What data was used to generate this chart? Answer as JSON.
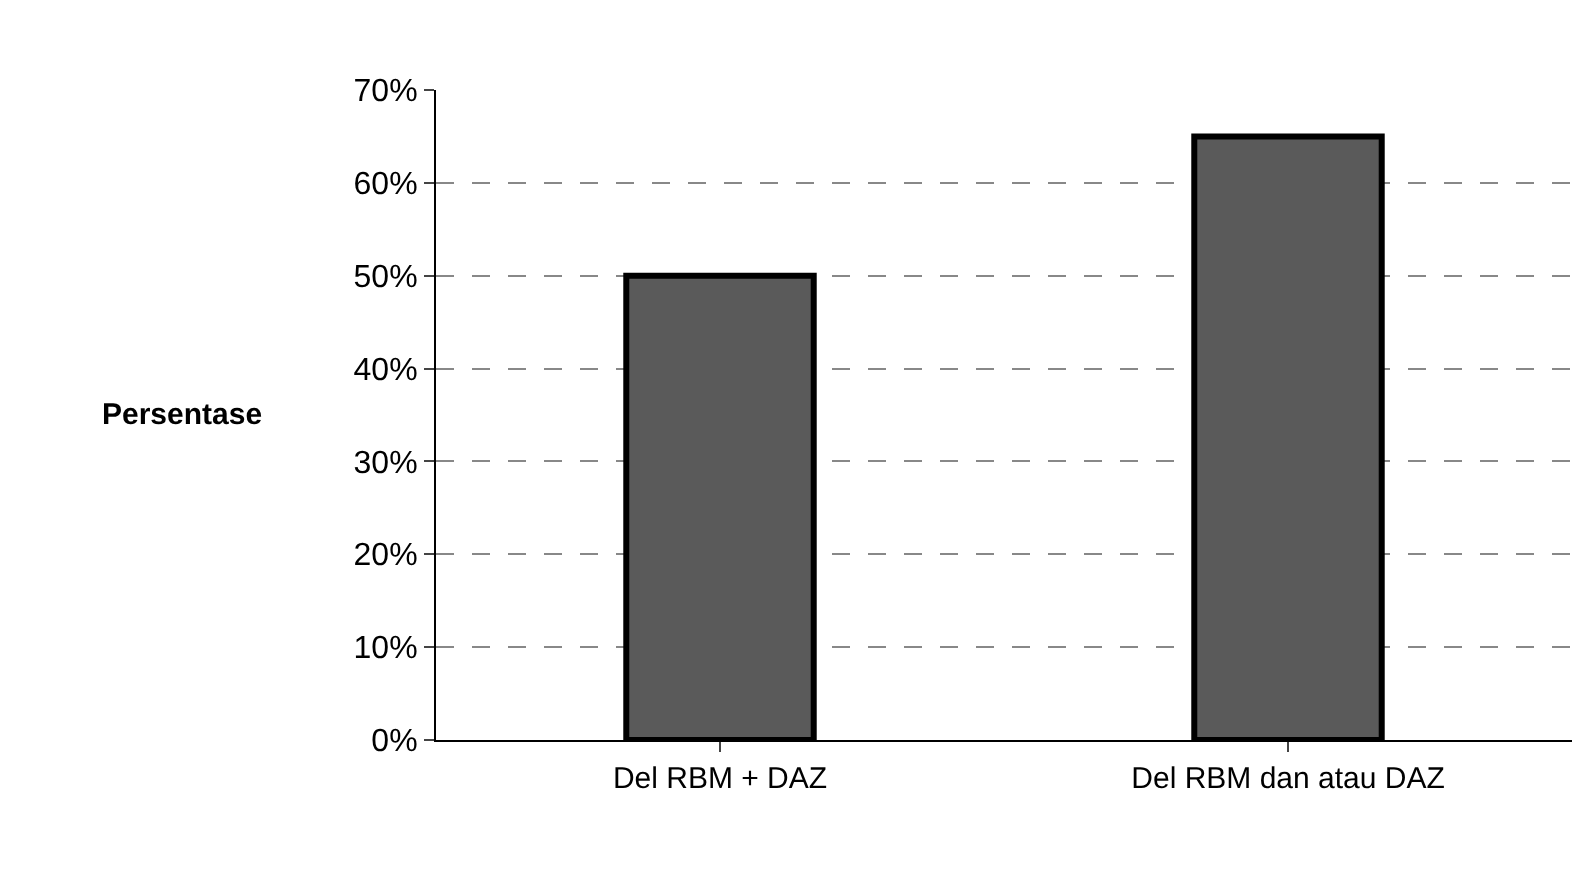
{
  "chart_data": {
    "type": "bar",
    "ylabel": "Persentase",
    "categories": [
      "Del RBM + DAZ",
      "Del RBM dan atau DAZ"
    ],
    "values": [
      50,
      65
    ],
    "color": "#5a5a5a",
    "ylim": [
      0,
      70
    ],
    "yticks": [
      {
        "value": 0,
        "label": "0%"
      },
      {
        "value": 10,
        "label": "10%"
      },
      {
        "value": 20,
        "label": "20%"
      },
      {
        "value": 30,
        "label": "30%"
      },
      {
        "value": 40,
        "label": "40%"
      },
      {
        "value": 50,
        "label": "50%"
      },
      {
        "value": 60,
        "label": "60%"
      },
      {
        "value": 70,
        "label": "70%"
      }
    ],
    "grid": "y"
  }
}
